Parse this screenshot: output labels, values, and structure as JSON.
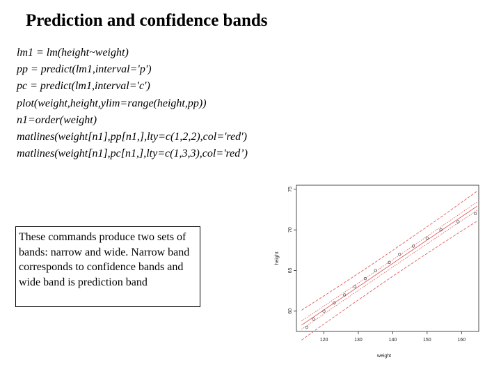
{
  "slide": {
    "title": "Prediction and confidence bands",
    "code_lines": [
      "lm1 = lm(height~weight)",
      "pp = predict(lm1,interval='p')",
      "pc = predict(lm1,interval='c')",
      "plot(weight,height,ylim=range(height,pp))",
      "n1=order(weight)",
      "matlines(weight[n1],pp[n1,],lty=c(1,2,2),col='red')",
      "matlines(weight[n1],pc[n1,],lty=c(1,3,3),col='red’)"
    ],
    "note": "These commands produce two sets of bands: narrow and wide. Narrow band corresponds to confidence bands and wide band is prediction band"
  },
  "chart_data": {
    "type": "scatter",
    "xlabel": "weight",
    "ylabel": "height",
    "xlim": [
      112,
      165
    ],
    "ylim": [
      57.5,
      75.5
    ],
    "x_ticks": [
      "120",
      "130",
      "140",
      "150",
      "160"
    ],
    "y_ticks": [
      "60",
      "65",
      "70",
      "75"
    ],
    "points": [
      {
        "x": 115,
        "y": 58
      },
      {
        "x": 117,
        "y": 59
      },
      {
        "x": 120,
        "y": 60
      },
      {
        "x": 123,
        "y": 61
      },
      {
        "x": 126,
        "y": 62
      },
      {
        "x": 129,
        "y": 63
      },
      {
        "x": 132,
        "y": 64
      },
      {
        "x": 135,
        "y": 65
      },
      {
        "x": 139,
        "y": 66
      },
      {
        "x": 142,
        "y": 67
      },
      {
        "x": 146,
        "y": 68
      },
      {
        "x": 150,
        "y": 69
      },
      {
        "x": 154,
        "y": 70
      },
      {
        "x": 159,
        "y": 71
      },
      {
        "x": 164,
        "y": 72
      }
    ],
    "fit": {
      "intercept": 25.7,
      "slope": 0.287
    },
    "confidence_halfwidth": 0.45,
    "prediction_halfwidth": 1.6,
    "line_color": "#e06060",
    "point_color": "#444444"
  }
}
